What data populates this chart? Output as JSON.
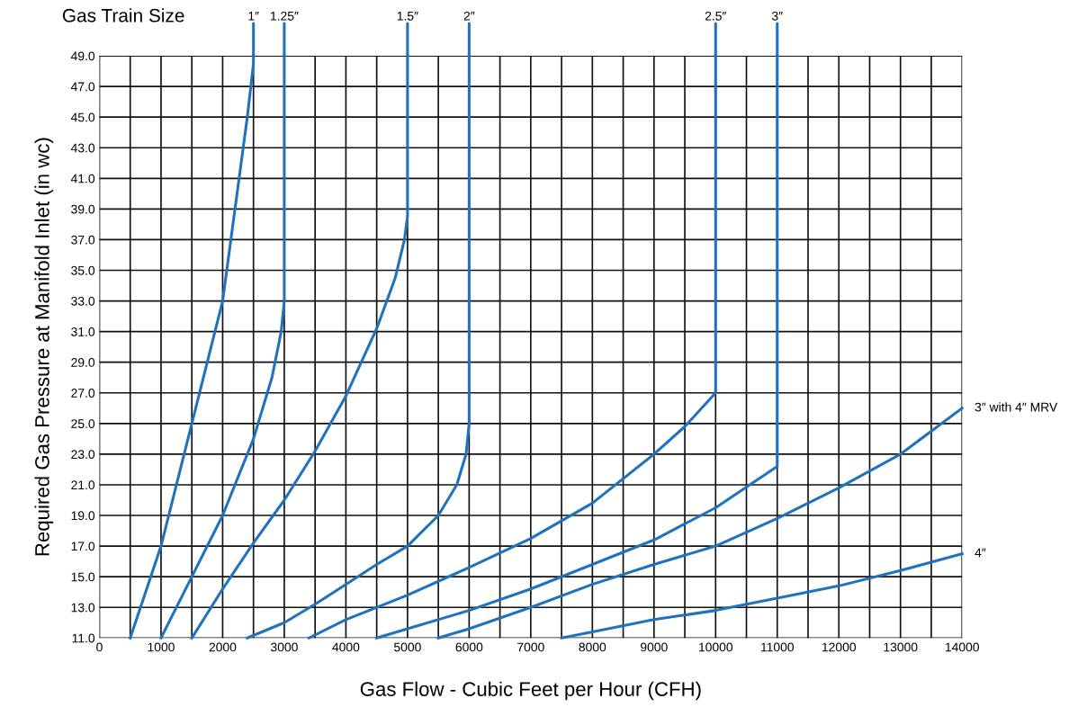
{
  "chart_data": {
    "type": "line",
    "xlabel": "Gas Flow - Cubic Feet per Hour (CFH)",
    "ylabel": "Required Gas Pressure at Manifold Inlet (in wc)",
    "legend_title": "Gas Train Size",
    "xlim": [
      0,
      14000
    ],
    "ylim": [
      11,
      49
    ],
    "xticks": [
      0,
      {
        "value": 500,
        "label": null
      },
      1000,
      {
        "value": 1500,
        "label": null
      },
      2000,
      {
        "value": 2500,
        "label": null
      },
      3000,
      {
        "value": 3500,
        "label": null
      },
      4000,
      {
        "value": 4500,
        "label": null
      },
      5000,
      {
        "value": 5500,
        "label": null
      },
      6000,
      {
        "value": 6500,
        "label": null
      },
      7000,
      {
        "value": 7500,
        "label": null
      },
      8000,
      {
        "value": 8500,
        "label": null
      },
      9000,
      {
        "value": 9500,
        "label": null
      },
      10000,
      {
        "value": 10500,
        "label": null
      },
      11000,
      {
        "value": 11500,
        "label": null
      },
      12000,
      {
        "value": 12500,
        "label": null
      },
      13000,
      {
        "value": 13500,
        "label": null
      },
      14000
    ],
    "yticks": [
      {
        "value": 11,
        "label": "11.0"
      },
      {
        "value": 13,
        "label": "13.0"
      },
      {
        "value": 15,
        "label": "15.0"
      },
      {
        "value": 17,
        "label": "17.0"
      },
      {
        "value": 19,
        "label": "19.0"
      },
      {
        "value": 21,
        "label": "21.0"
      },
      {
        "value": 23,
        "label": "23.0"
      },
      {
        "value": 25,
        "label": "25.0"
      },
      {
        "value": 27,
        "label": "27.0"
      },
      {
        "value": 29,
        "label": "29.0"
      },
      {
        "value": 31,
        "label": "31.0"
      },
      {
        "value": 33,
        "label": "33.0"
      },
      {
        "value": 35,
        "label": "35.0"
      },
      {
        "value": 37,
        "label": "37.0"
      },
      {
        "value": 39,
        "label": "39.0"
      },
      {
        "value": 41,
        "label": "41.0"
      },
      {
        "value": 43,
        "label": "43.0"
      },
      {
        "value": 45,
        "label": "45.0"
      },
      {
        "value": 47,
        "label": "47.0"
      },
      {
        "value": 49,
        "label": "49.0"
      }
    ],
    "grid": true,
    "line_style": "solid",
    "marker": "none",
    "series": [
      {
        "name": "1″",
        "color": "#1f72bb",
        "x": [
          500,
          750,
          1000,
          1250,
          1500,
          1750,
          2000,
          2100,
          2250,
          2400,
          2500,
          2500
        ],
        "values": [
          11,
          14,
          17,
          21,
          25,
          29,
          33,
          36,
          40.5,
          45,
          48.5,
          49
        ]
      },
      {
        "name": "1.25″",
        "color": "#1f72bb",
        "x": [
          1000,
          1500,
          2000,
          2500,
          2800,
          2950,
          3000,
          3000
        ],
        "values": [
          11,
          15,
          19,
          24,
          28,
          31,
          33,
          49
        ]
      },
      {
        "name": "1.5″",
        "color": "#1f72bb",
        "x": [
          1500,
          2000,
          2500,
          3000,
          3500,
          4000,
          4500,
          4800,
          4950,
          5000,
          5000
        ],
        "values": [
          11,
          14.2,
          17.2,
          20,
          23.2,
          26.8,
          31.2,
          34.5,
          37,
          38.5,
          49
        ]
      },
      {
        "name": "2″",
        "color": "#1f72bb",
        "x": [
          2400,
          3000,
          3500,
          4000,
          4500,
          5000,
          5500,
          5800,
          5950,
          6000,
          6000
        ],
        "values": [
          11,
          12,
          13.2,
          14.5,
          15.8,
          17,
          19,
          21,
          23,
          25,
          49
        ]
      },
      {
        "name": "2.5″",
        "color": "#1f72bb",
        "x": [
          3400,
          4000,
          5000,
          6000,
          7000,
          8000,
          9000,
          9500,
          10000,
          10000
        ],
        "values": [
          11,
          12.2,
          13.8,
          15.6,
          17.5,
          19.8,
          23,
          24.8,
          27,
          49
        ]
      },
      {
        "name": "3″",
        "color": "#1f72bb",
        "x": [
          4500,
          5000,
          6000,
          7000,
          8000,
          9000,
          10000,
          11000,
          11000
        ],
        "values": [
          11,
          11.6,
          12.8,
          14.2,
          15.8,
          17.4,
          19.5,
          22.2,
          49
        ]
      },
      {
        "name": "3″ with 4″ MRV",
        "color": "#1f72bb",
        "x": [
          5500,
          6000,
          7000,
          8000,
          9000,
          10000,
          11000,
          12000,
          13000,
          14000
        ],
        "values": [
          11,
          11.6,
          13,
          14.5,
          15.8,
          17,
          18.8,
          20.8,
          23,
          26
        ]
      },
      {
        "name": "4″",
        "color": "#1f72bb",
        "x": [
          7500,
          8000,
          9000,
          10000,
          11000,
          12000,
          13000,
          14000
        ],
        "values": [
          11,
          11.4,
          12.2,
          12.8,
          13.6,
          14.4,
          15.4,
          16.5
        ]
      }
    ]
  }
}
